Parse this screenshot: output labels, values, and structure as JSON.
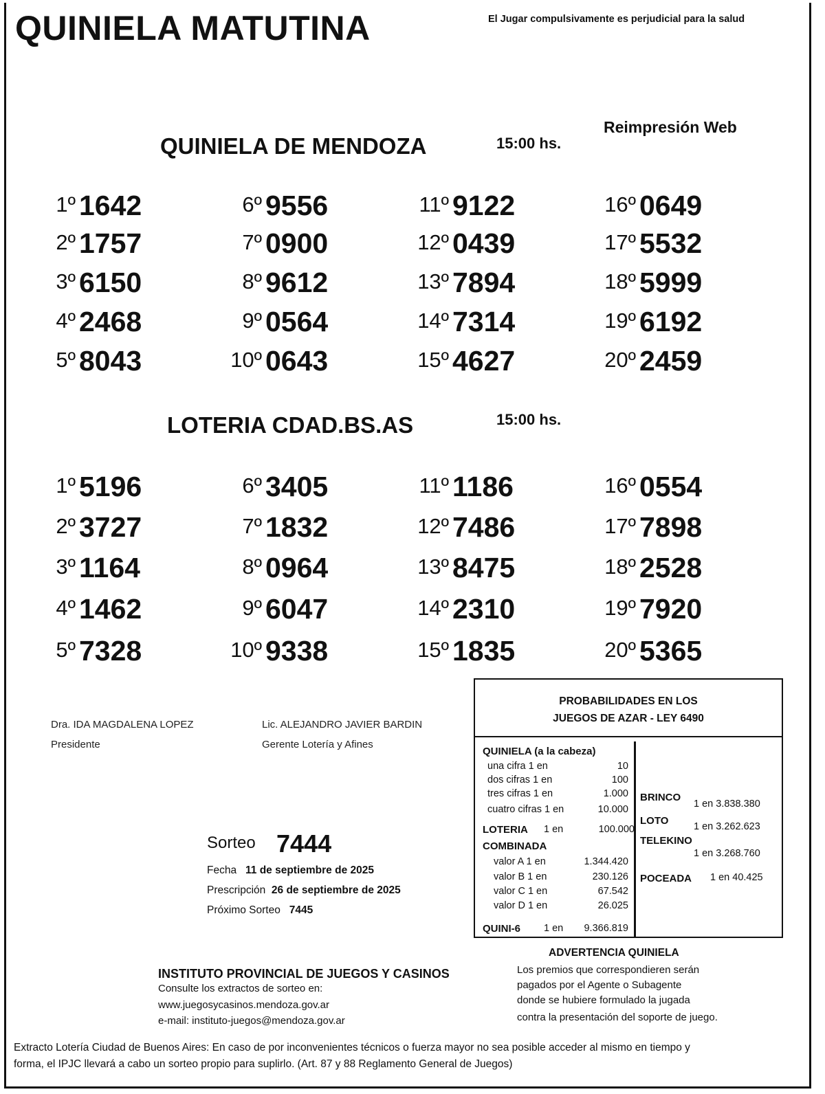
{
  "header": {
    "title": "QUINIELA MATUTINA",
    "warning": "El Jugar compulsivamente es perjudicial para la salud",
    "reprint": "Reimpresión Web"
  },
  "mendoza": {
    "title": "QUINIELA  DE MENDOZA",
    "time": "15:00 hs.",
    "results": [
      {
        "pos": "1º",
        "num": "1642"
      },
      {
        "pos": "2º",
        "num": "1757"
      },
      {
        "pos": "3º",
        "num": "6150"
      },
      {
        "pos": "4º",
        "num": "2468"
      },
      {
        "pos": "5º",
        "num": "8043"
      },
      {
        "pos": "6º",
        "num": "9556"
      },
      {
        "pos": "7º",
        "num": "0900"
      },
      {
        "pos": "8º",
        "num": "9612"
      },
      {
        "pos": "9º",
        "num": "0564"
      },
      {
        "pos": "10º",
        "num": "0643"
      },
      {
        "pos": "11º",
        "num": "9122"
      },
      {
        "pos": "12º",
        "num": "0439"
      },
      {
        "pos": "13º",
        "num": "7894"
      },
      {
        "pos": "14º",
        "num": "7314"
      },
      {
        "pos": "15º",
        "num": "4627"
      },
      {
        "pos": "16º",
        "num": "0649"
      },
      {
        "pos": "17º",
        "num": "5532"
      },
      {
        "pos": "18º",
        "num": "5999"
      },
      {
        "pos": "19º",
        "num": "6192"
      },
      {
        "pos": "20º",
        "num": "2459"
      }
    ]
  },
  "loteria": {
    "title": "LOTERIA CDAD.BS.AS",
    "time": "15:00 hs.",
    "results": [
      {
        "pos": "1º",
        "num": "5196"
      },
      {
        "pos": "2º",
        "num": "3727"
      },
      {
        "pos": "3º",
        "num": "1164"
      },
      {
        "pos": "4º",
        "num": "1462"
      },
      {
        "pos": "5º",
        "num": "7328"
      },
      {
        "pos": "6º",
        "num": "3405"
      },
      {
        "pos": "7º",
        "num": "1832"
      },
      {
        "pos": "8º",
        "num": "0964"
      },
      {
        "pos": "9º",
        "num": "6047"
      },
      {
        "pos": "10º",
        "num": "9338"
      },
      {
        "pos": "11º",
        "num": "1186"
      },
      {
        "pos": "12º",
        "num": "7486"
      },
      {
        "pos": "13º",
        "num": "8475"
      },
      {
        "pos": "14º",
        "num": "2310"
      },
      {
        "pos": "15º",
        "num": "1835"
      },
      {
        "pos": "16º",
        "num": "0554"
      },
      {
        "pos": "17º",
        "num": "7898"
      },
      {
        "pos": "18º",
        "num": "2528"
      },
      {
        "pos": "19º",
        "num": "7920"
      },
      {
        "pos": "20º",
        "num": "5365"
      }
    ]
  },
  "signatures": [
    {
      "name": "Dra. IDA MAGDALENA LOPEZ",
      "role": "Presidente"
    },
    {
      "name": "Lic. ALEJANDRO JAVIER BARDIN",
      "role": "Gerente Lotería y Afines"
    }
  ],
  "draw": {
    "label": "Sorteo",
    "number": "7444",
    "fecha_label": "Fecha",
    "fecha": "11 de septiembre de 2025",
    "presc_label": "Prescripción",
    "presc": "26 de septiembre de 2025",
    "next_label": "Próximo Sorteo",
    "next": "7445"
  },
  "prob": {
    "head1": "PROBABILIDADES EN LOS",
    "head2": "JUEGOS DE AZAR - LEY 6490",
    "quiniela_title": "QUINIELA (a la cabeza)",
    "quiniela": [
      {
        "l": "una cifra  1 en",
        "v": "10"
      },
      {
        "l": "dos cifras 1 en",
        "v": "100"
      },
      {
        "l": "tres cifras 1 en",
        "v": "1.000"
      },
      {
        "l": "cuatro cifras 1 en",
        "v": "10.000"
      }
    ],
    "loteria_label": "LOTERIA",
    "loteria_en": "1 en",
    "loteria_v": "100.000",
    "combinada_title": "COMBINADA",
    "combinada": [
      {
        "l": "valor A 1 en",
        "v": "1.344.420"
      },
      {
        "l": "valor B 1 en",
        "v": "230.126"
      },
      {
        "l": "valor C 1 en",
        "v": "67.542"
      },
      {
        "l": "valor D 1 en",
        "v": "26.025"
      }
    ],
    "quini6_label": "QUINI-6",
    "quini6_en": "1 en",
    "quini6_v": "9.366.819",
    "brinco_label": "BRINCO",
    "brinco_v": "1 en 3.838.380",
    "loto_label": "LOTO",
    "loto_v": "1 en 3.262.623",
    "telekino_label": "TELEKINO",
    "telekino_v": "1 en 3.268.760",
    "poceada_label": "POCEADA",
    "poceada_v": "1 en 40.425"
  },
  "institute": {
    "name": "INSTITUTO PROVINCIAL DE JUEGOS Y CASINOS",
    "line1": "Consulte los extractos de sorteo en:",
    "web": "www.juegosycasinos.mendoza.gov.ar",
    "email": "e-mail:  instituto-juegos@mendoza.gov.ar"
  },
  "advert": {
    "title": "ADVERTENCIA QUINIELA",
    "lines": [
      "Los premios que correspondieren serán",
      "pagados por el Agente o Subagente",
      "donde se hubiere formulado la jugada",
      "contra la presentación del soporte de juego."
    ]
  },
  "footer": {
    "line1": "Extracto Lotería Ciudad de Buenos Aires: En caso de por inconvenientes técnicos o fuerza mayor no sea posible acceder al mismo en tiempo y",
    "line2": "forma, el IPJC llevará a cabo un sorteo propio para suplirlo. (Art. 87 y 88 Reglamento General de Juegos)"
  }
}
